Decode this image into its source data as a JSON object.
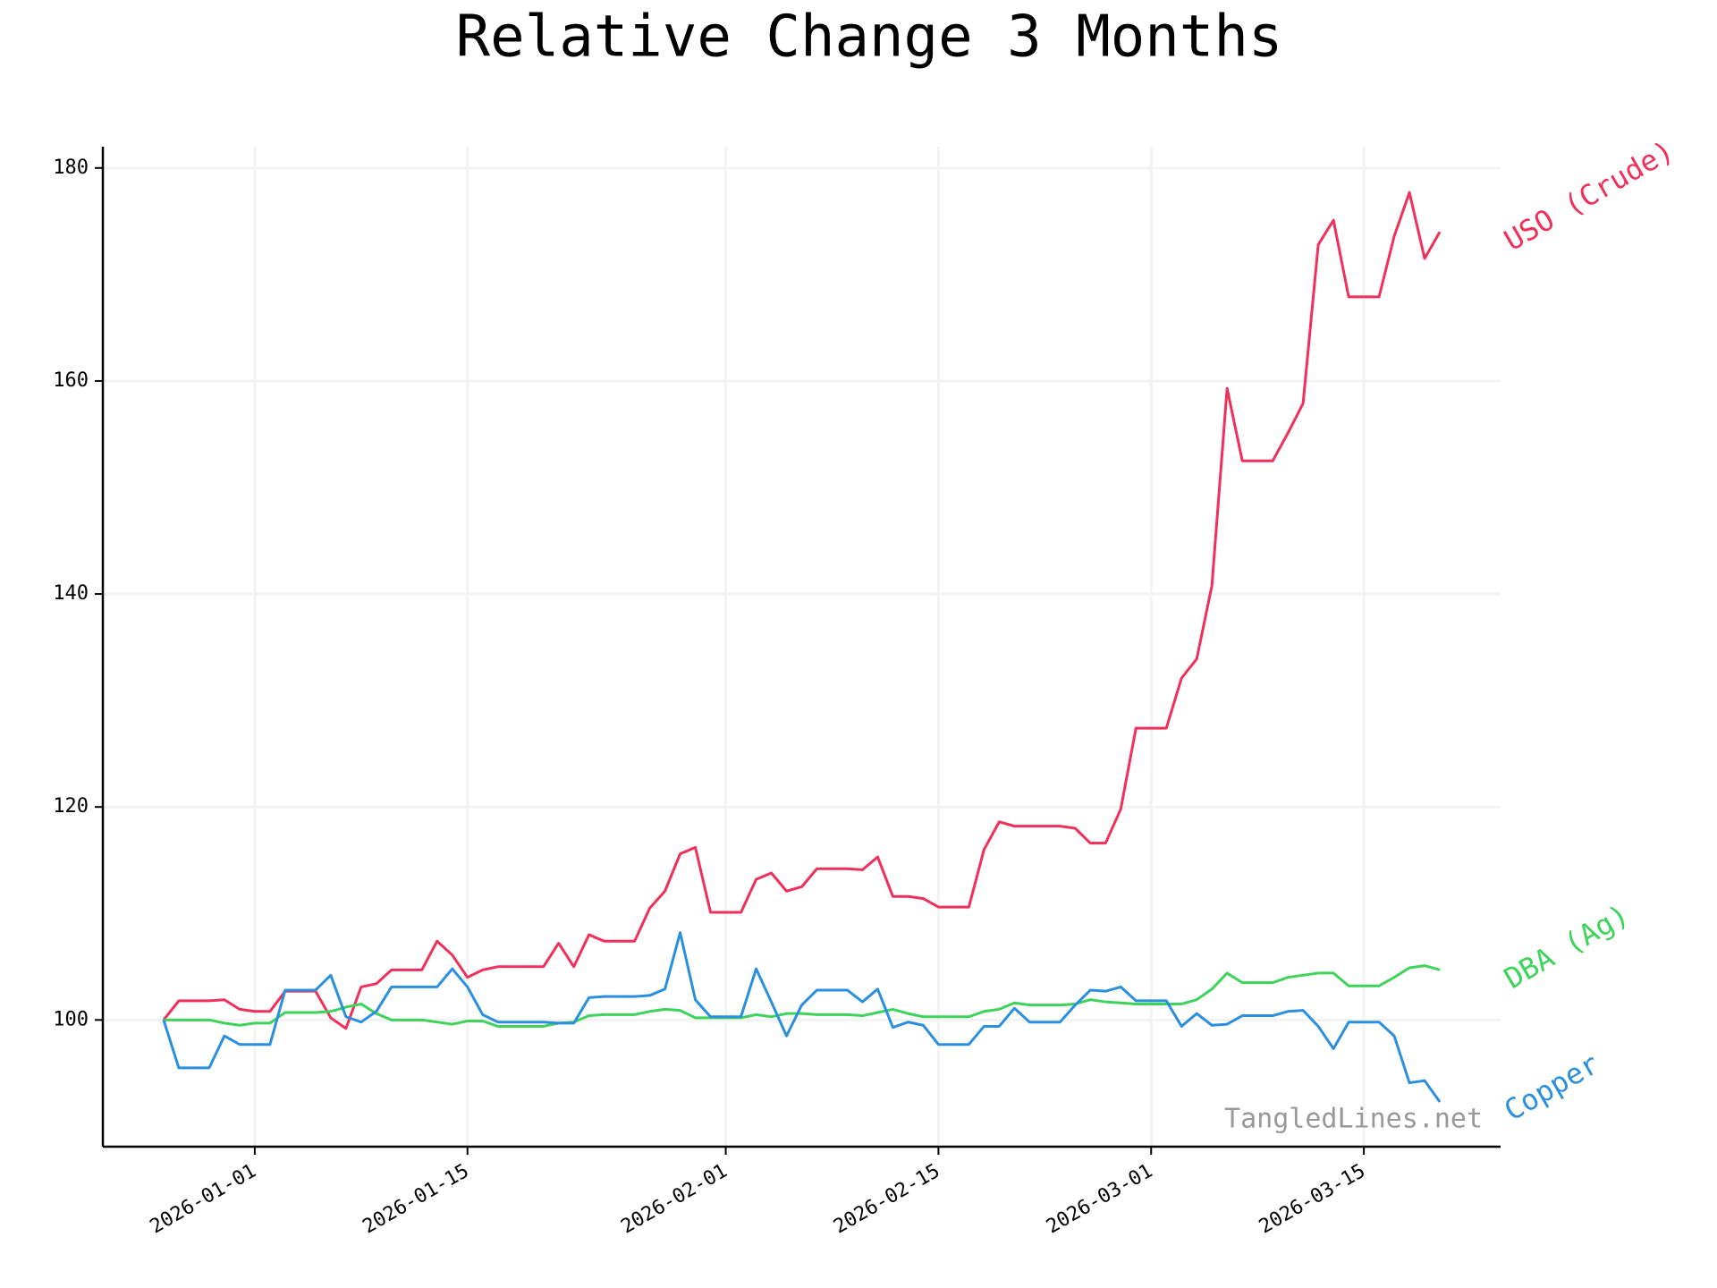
{
  "chart_data": {
    "type": "line",
    "title": "Relative Change 3 Months",
    "watermark": "TangledLines.net",
    "x": [
      "2025-12-26",
      "2025-12-27",
      "2025-12-28",
      "2025-12-29",
      "2025-12-30",
      "2025-12-31",
      "2026-01-01",
      "2026-01-02",
      "2026-01-03",
      "2026-01-04",
      "2026-01-05",
      "2026-01-06",
      "2026-01-07",
      "2026-01-08",
      "2026-01-09",
      "2026-01-10",
      "2026-01-11",
      "2026-01-12",
      "2026-01-13",
      "2026-01-14",
      "2026-01-15",
      "2026-01-16",
      "2026-01-17",
      "2026-01-18",
      "2026-01-19",
      "2026-01-20",
      "2026-01-21",
      "2026-01-22",
      "2026-01-23",
      "2026-01-24",
      "2026-01-25",
      "2026-01-26",
      "2026-01-27",
      "2026-01-28",
      "2026-01-29",
      "2026-01-30",
      "2026-01-31",
      "2026-02-01",
      "2026-02-02",
      "2026-02-03",
      "2026-02-04",
      "2026-02-05",
      "2026-02-06",
      "2026-02-07",
      "2026-02-08",
      "2026-02-09",
      "2026-02-10",
      "2026-02-11",
      "2026-02-12",
      "2026-02-13",
      "2026-02-14",
      "2026-02-15",
      "2026-02-16",
      "2026-02-17",
      "2026-02-18",
      "2026-02-19",
      "2026-02-20",
      "2026-02-21",
      "2026-02-22",
      "2026-02-23",
      "2026-02-24",
      "2026-02-25",
      "2026-02-26",
      "2026-02-27",
      "2026-02-28",
      "2026-03-01",
      "2026-03-02",
      "2026-03-03",
      "2026-03-04",
      "2026-03-05",
      "2026-03-06",
      "2026-03-07",
      "2026-03-08",
      "2026-03-09",
      "2026-03-10",
      "2026-03-11",
      "2026-03-12",
      "2026-03-13",
      "2026-03-14",
      "2026-03-15",
      "2026-03-16",
      "2026-03-17",
      "2026-03-18",
      "2026-03-19",
      "2026-03-20"
    ],
    "series": [
      {
        "name": "USO (Crude)",
        "color": "#f0305a",
        "values": [
          100,
          101.8,
          101.8,
          101.8,
          101.9,
          101.0,
          100.8,
          100.8,
          102.7,
          102.7,
          102.7,
          100.2,
          99.2,
          103.1,
          103.4,
          104.7,
          104.7,
          104.7,
          107.4,
          106.1,
          104.0,
          104.7,
          105.0,
          105.0,
          105.0,
          105.0,
          107.2,
          105.0,
          108.0,
          107.4,
          107.4,
          107.4,
          110.5,
          112.1,
          115.6,
          116.2,
          110.1,
          110.1,
          110.1,
          113.2,
          113.8,
          112.1,
          112.5,
          114.2,
          114.2,
          114.2,
          114.1,
          115.3,
          111.6,
          111.6,
          111.4,
          110.6,
          110.6,
          110.6,
          116.0,
          118.6,
          118.2,
          118.2,
          118.2,
          118.2,
          118.0,
          116.6,
          116.6,
          119.8,
          127.4,
          127.4,
          127.4,
          132.1,
          133.9,
          140.8,
          159.3,
          152.5,
          152.5,
          152.5,
          155.1,
          157.9,
          172.8,
          175.1,
          167.9,
          167.9,
          167.9,
          173.6,
          177.7,
          171.5,
          174.0
        ]
      },
      {
        "name": "DBA (Ag)",
        "color": "#3ed35a",
        "values": [
          100,
          100,
          100,
          100,
          99.7,
          99.5,
          99.7,
          99.7,
          100.7,
          100.7,
          100.7,
          100.8,
          101.2,
          101.5,
          100.6,
          100,
          100,
          100,
          99.8,
          99.6,
          99.9,
          99.9,
          99.4,
          99.4,
          99.4,
          99.4,
          99.7,
          99.8,
          100.4,
          100.5,
          100.5,
          100.5,
          100.8,
          101.0,
          100.9,
          100.2,
          100.2,
          100.2,
          100.2,
          100.5,
          100.3,
          100.6,
          100.6,
          100.5,
          100.5,
          100.5,
          100.4,
          100.7,
          101.0,
          100.6,
          100.3,
          100.3,
          100.3,
          100.3,
          100.8,
          101.0,
          101.6,
          101.4,
          101.4,
          101.4,
          101.5,
          101.9,
          101.7,
          101.6,
          101.5,
          101.5,
          101.5,
          101.5,
          101.9,
          102.9,
          104.4,
          103.5,
          103.5,
          103.5,
          104.0,
          104.2,
          104.4,
          104.4,
          103.2,
          103.2,
          103.2,
          104.0,
          104.9,
          105.1,
          104.7
        ]
      },
      {
        "name": "Copper",
        "color": "#2b8fe0",
        "values": [
          100,
          95.5,
          95.5,
          95.5,
          98.5,
          97.7,
          97.7,
          97.7,
          102.8,
          102.8,
          102.8,
          104.2,
          100.3,
          99.8,
          100.8,
          103.1,
          103.1,
          103.1,
          103.1,
          104.8,
          103.1,
          100.5,
          99.8,
          99.8,
          99.8,
          99.8,
          99.7,
          99.7,
          102.1,
          102.2,
          102.2,
          102.2,
          102.3,
          102.9,
          108.2,
          101.9,
          100.3,
          100.3,
          100.3,
          104.8,
          101.7,
          98.5,
          101.4,
          102.8,
          102.8,
          102.8,
          101.7,
          102.9,
          99.3,
          99.8,
          99.5,
          97.7,
          97.7,
          97.7,
          99.4,
          99.4,
          101.1,
          99.8,
          99.8,
          99.8,
          101.4,
          102.8,
          102.7,
          103.1,
          101.8,
          101.8,
          101.8,
          99.4,
          100.6,
          99.5,
          99.6,
          100.4,
          100.4,
          100.4,
          100.8,
          100.9,
          99.4,
          97.3,
          99.8,
          99.8,
          99.8,
          98.5,
          94.1,
          94.3,
          92.3
        ]
      }
    ],
    "xlim": [
      "2025-12-22",
      "2026-03-24"
    ],
    "xticks": [
      "2026-01-01",
      "2026-01-15",
      "2026-02-01",
      "2026-02-15",
      "2026-03-01",
      "2026-03-15"
    ],
    "ylim": [
      88.1,
      182
    ],
    "yticks": [
      100,
      120,
      140,
      160,
      180
    ],
    "grid": true
  }
}
